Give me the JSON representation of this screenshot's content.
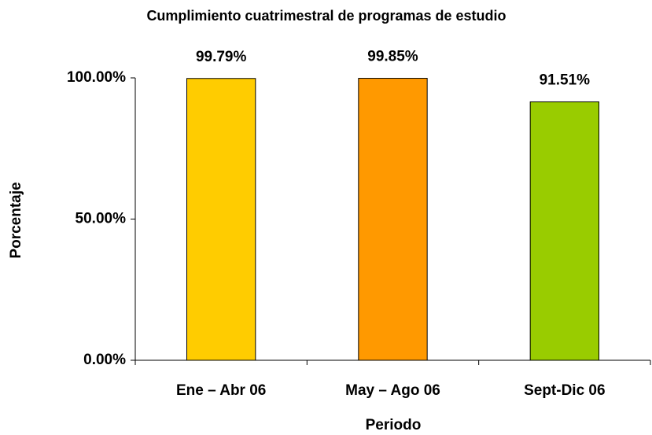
{
  "chart_data": {
    "type": "bar",
    "title": "Cumplimiento cuatrimestral de programas de estudio",
    "x_label": "Periodo",
    "y_label": "Porcentaje",
    "categories": [
      "Ene – Abr 06",
      "May – Ago 06",
      "Sept-Dic 06"
    ],
    "values": [
      99.79,
      99.85,
      91.51
    ],
    "value_labels": [
      "99.79%",
      "99.85%",
      "91.51%"
    ],
    "colors": [
      "#ffcc00",
      "#ff9900",
      "#99cc00"
    ],
    "ylim": [
      0,
      100
    ],
    "yticks": [
      {
        "value": 0,
        "label": "0.00%"
      },
      {
        "value": 50,
        "label": "50.00%"
      },
      {
        "value": 100,
        "label": "100.00%"
      }
    ],
    "grid": false
  }
}
